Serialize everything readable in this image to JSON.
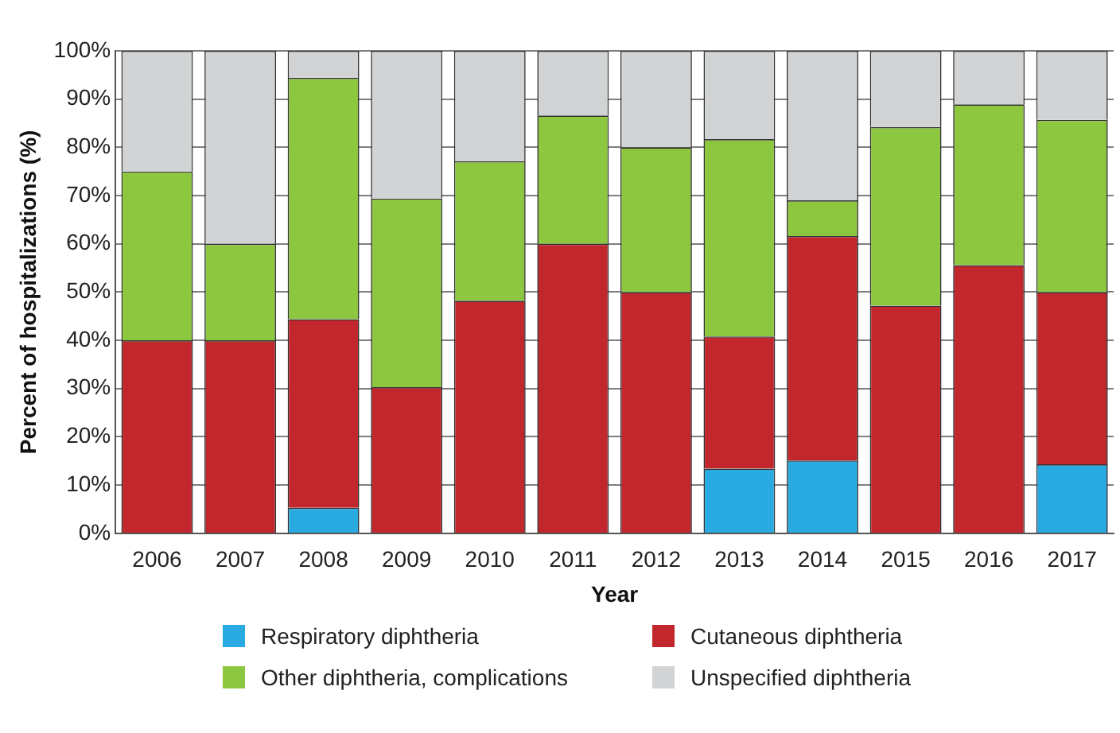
{
  "chart_data": {
    "type": "bar",
    "stacked": true,
    "xlabel": "Year",
    "ylabel": "Percent of hospitalizations (%)",
    "categories": [
      "2006",
      "2007",
      "2008",
      "2009",
      "2010",
      "2011",
      "2012",
      "2013",
      "2014",
      "2015",
      "2016",
      "2017"
    ],
    "series": [
      {
        "name": "Respiratory diphtheria",
        "color": "#29abe2",
        "values": [
          0,
          0,
          5.3,
          0,
          0,
          0,
          0,
          13.4,
          15.1,
          0,
          0,
          14.3
        ]
      },
      {
        "name": "Cutaneous diphtheria",
        "color": "#c1272d",
        "values": [
          40,
          40,
          39.1,
          30.3,
          48.2,
          60,
          50,
          27.4,
          46.5,
          47.2,
          55.6,
          35.7
        ]
      },
      {
        "name": "Other diphtheria, complications",
        "color": "#8dc63f",
        "values": [
          35,
          20,
          50,
          39.1,
          28.9,
          26.6,
          30,
          40.9,
          7.4,
          37,
          33.3,
          35.7
        ]
      },
      {
        "name": "Unspecified diphtheria",
        "color": "#d1d3d4",
        "values": [
          25,
          40,
          5.6,
          30.6,
          22.9,
          13.4,
          20,
          18.3,
          31,
          15.8,
          11.1,
          14.3
        ]
      }
    ],
    "ylim": [
      0,
      100
    ],
    "yticks": [
      {
        "value": 0,
        "label": "0%"
      },
      {
        "value": 10,
        "label": "10%"
      },
      {
        "value": 20,
        "label": "20%"
      },
      {
        "value": 30,
        "label": "30%"
      },
      {
        "value": 40,
        "label": "40%"
      },
      {
        "value": 50,
        "label": "50%"
      },
      {
        "value": 60,
        "label": "60%"
      },
      {
        "value": 70,
        "label": "70%"
      },
      {
        "value": 80,
        "label": "80%"
      },
      {
        "value": 90,
        "label": "90%"
      },
      {
        "value": 100,
        "label": "100%"
      }
    ],
    "grid": "y",
    "legend": "bottom"
  }
}
